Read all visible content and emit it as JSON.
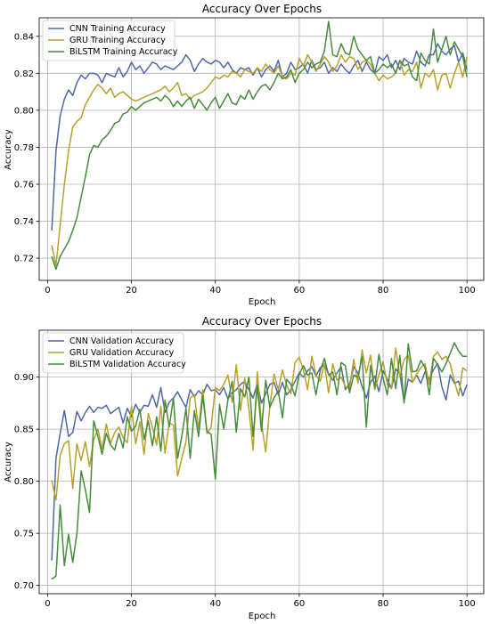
{
  "chart_data": [
    {
      "type": "line",
      "title": "Accuracy Over Epochs",
      "xlabel": "Epoch",
      "ylabel": "Accuracy",
      "xlim": [
        -2,
        104
      ],
      "ylim": [
        0.708,
        0.85
      ],
      "xticks": [
        0,
        20,
        40,
        60,
        80,
        100
      ],
      "yticks": [
        0.72,
        0.74,
        0.76,
        0.78,
        0.8,
        0.82,
        0.84
      ],
      "grid": true,
      "legend_position": "top-left",
      "series": [
        {
          "name": "CNN Training Accuracy",
          "color": "#5167a8",
          "values": [
            0.735,
            0.778,
            0.797,
            0.806,
            0.811,
            0.808,
            0.815,
            0.819,
            0.817,
            0.82,
            0.82,
            0.819,
            0.815,
            0.82,
            0.819,
            0.818,
            0.823,
            0.818,
            0.821,
            0.826,
            0.822,
            0.824,
            0.82,
            0.823,
            0.826,
            0.825,
            0.822,
            0.824,
            0.823,
            0.822,
            0.824,
            0.826,
            0.83,
            0.827,
            0.821,
            0.825,
            0.828,
            0.826,
            0.825,
            0.827,
            0.826,
            0.823,
            0.826,
            0.822,
            0.82,
            0.823,
            0.822,
            0.823,
            0.819,
            0.823,
            0.818,
            0.822,
            0.824,
            0.821,
            0.827,
            0.818,
            0.82,
            0.826,
            0.822,
            0.823,
            0.825,
            0.82,
            0.827,
            0.822,
            0.823,
            0.826,
            0.82,
            0.823,
            0.821,
            0.825,
            0.822,
            0.82,
            0.824,
            0.827,
            0.821,
            0.826,
            0.822,
            0.82,
            0.829,
            0.827,
            0.83,
            0.823,
            0.827,
            0.822,
            0.828,
            0.826,
            0.825,
            0.832,
            0.826,
            0.824,
            0.83,
            0.83,
            0.836,
            0.832,
            0.83,
            0.833,
            0.835,
            0.826,
            0.831,
            0.822
          ]
        },
        {
          "name": "GRU Training Accuracy",
          "color": "#b6a12c",
          "values": [
            0.727,
            0.716,
            0.738,
            0.76,
            0.778,
            0.791,
            0.794,
            0.796,
            0.803,
            0.807,
            0.811,
            0.814,
            0.812,
            0.809,
            0.812,
            0.807,
            0.809,
            0.81,
            0.808,
            0.806,
            0.805,
            0.806,
            0.807,
            0.808,
            0.809,
            0.81,
            0.811,
            0.813,
            0.81,
            0.812,
            0.815,
            0.808,
            0.809,
            0.806,
            0.808,
            0.809,
            0.81,
            0.812,
            0.815,
            0.818,
            0.817,
            0.819,
            0.818,
            0.821,
            0.82,
            0.818,
            0.822,
            0.821,
            0.82,
            0.823,
            0.821,
            0.825,
            0.822,
            0.82,
            0.824,
            0.818,
            0.817,
            0.82,
            0.819,
            0.828,
            0.824,
            0.83,
            0.826,
            0.821,
            0.825,
            0.829,
            0.826,
            0.821,
            0.824,
            0.83,
            0.826,
            0.829,
            0.828,
            0.822,
            0.826,
            0.827,
            0.825,
            0.82,
            0.816,
            0.819,
            0.817,
            0.818,
            0.82,
            0.827,
            0.819,
            0.822,
            0.821,
            0.826,
            0.812,
            0.82,
            0.818,
            0.822,
            0.811,
            0.819,
            0.82,
            0.812,
            0.82,
            0.826,
            0.818,
            0.829
          ]
        },
        {
          "name": "BiLSTM Training Accuracy",
          "color": "#468c3c",
          "values": [
            0.721,
            0.714,
            0.721,
            0.725,
            0.729,
            0.735,
            0.742,
            0.753,
            0.764,
            0.776,
            0.781,
            0.78,
            0.784,
            0.786,
            0.789,
            0.793,
            0.794,
            0.798,
            0.799,
            0.802,
            0.8,
            0.802,
            0.804,
            0.805,
            0.806,
            0.807,
            0.805,
            0.808,
            0.806,
            0.802,
            0.805,
            0.802,
            0.805,
            0.807,
            0.801,
            0.806,
            0.803,
            0.8,
            0.804,
            0.807,
            0.801,
            0.805,
            0.809,
            0.804,
            0.803,
            0.808,
            0.806,
            0.811,
            0.806,
            0.81,
            0.813,
            0.814,
            0.811,
            0.815,
            0.82,
            0.817,
            0.818,
            0.822,
            0.815,
            0.82,
            0.822,
            0.826,
            0.823,
            0.825,
            0.826,
            0.832,
            0.848,
            0.83,
            0.829,
            0.836,
            0.831,
            0.83,
            0.84,
            0.833,
            0.83,
            0.827,
            0.829,
            0.82,
            0.822,
            0.825,
            0.823,
            0.825,
            0.82,
            0.827,
            0.824,
            0.825,
            0.818,
            0.816,
            0.831,
            0.827,
            0.825,
            0.844,
            0.826,
            0.833,
            0.84,
            0.83,
            0.837,
            0.833,
            0.829,
            0.818
          ]
        }
      ]
    },
    {
      "type": "line",
      "title": "Accuracy Over Epochs",
      "xlabel": "Epoch",
      "ylabel": "Accuracy",
      "xlim": [
        -2,
        104
      ],
      "ylim": [
        0.692,
        0.945
      ],
      "xticks": [
        0,
        20,
        40,
        60,
        80,
        100
      ],
      "yticks": [
        0.7,
        0.75,
        0.8,
        0.85,
        0.9
      ],
      "grid": true,
      "legend_position": "top-left",
      "series": [
        {
          "name": "CNN Validation Accuracy",
          "color": "#5167a8",
          "values": [
            0.724,
            0.822,
            0.846,
            0.868,
            0.843,
            0.847,
            0.867,
            0.858,
            0.866,
            0.872,
            0.866,
            0.871,
            0.87,
            0.873,
            0.865,
            0.868,
            0.871,
            0.856,
            0.87,
            0.862,
            0.874,
            0.866,
            0.873,
            0.872,
            0.883,
            0.871,
            0.89,
            0.866,
            0.876,
            0.88,
            0.886,
            0.878,
            0.871,
            0.888,
            0.881,
            0.887,
            0.883,
            0.893,
            0.887,
            0.888,
            0.883,
            0.89,
            0.879,
            0.885,
            0.888,
            0.893,
            0.896,
            0.888,
            0.88,
            0.894,
            0.875,
            0.884,
            0.893,
            0.895,
            0.883,
            0.895,
            0.883,
            0.888,
            0.896,
            0.904,
            0.9,
            0.906,
            0.91,
            0.901,
            0.909,
            0.912,
            0.903,
            0.897,
            0.904,
            0.91,
            0.888,
            0.893,
            0.91,
            0.904,
            0.891,
            0.88,
            0.895,
            0.901,
            0.886,
            0.906,
            0.898,
            0.889,
            0.908,
            0.903,
            0.877,
            0.898,
            0.895,
            0.902,
            0.894,
            0.905,
            0.898,
            0.907,
            0.913,
            0.891,
            0.878,
            0.902,
            0.894,
            0.896,
            0.882,
            0.893
          ]
        },
        {
          "name": "GRU Validation Accuracy",
          "color": "#b6a12c",
          "values": [
            0.801,
            0.782,
            0.825,
            0.836,
            0.839,
            0.793,
            0.836,
            0.82,
            0.838,
            0.814,
            0.84,
            0.85,
            0.831,
            0.855,
            0.836,
            0.847,
            0.852,
            0.842,
            0.837,
            0.872,
            0.836,
            0.857,
            0.826,
            0.865,
            0.852,
            0.835,
            0.872,
            0.827,
            0.856,
            0.854,
            0.805,
            0.822,
            0.838,
            0.88,
            0.883,
            0.85,
            0.888,
            0.846,
            0.852,
            0.89,
            0.887,
            0.893,
            0.902,
            0.876,
            0.912,
            0.868,
            0.899,
            0.87,
            0.83,
            0.905,
            0.856,
            0.828,
            0.872,
            0.903,
            0.888,
            0.907,
            0.892,
            0.884,
            0.914,
            0.919,
            0.907,
            0.888,
            0.92,
            0.902,
            0.896,
            0.913,
            0.885,
            0.913,
            0.897,
            0.9,
            0.891,
            0.889,
            0.917,
            0.894,
            0.926,
            0.904,
            0.921,
            0.888,
            0.902,
            0.915,
            0.893,
            0.889,
            0.928,
            0.9,
            0.917,
            0.921,
            0.895,
            0.903,
            0.909,
            0.913,
            0.893,
            0.92,
            0.924,
            0.917,
            0.92,
            0.913,
            0.896,
            0.882,
            0.909,
            0.906
          ]
        },
        {
          "name": "BiLSTM Validation Accuracy",
          "color": "#468c3c",
          "values": [
            0.706,
            0.709,
            0.777,
            0.719,
            0.749,
            0.722,
            0.75,
            0.81,
            0.792,
            0.77,
            0.858,
            0.843,
            0.826,
            0.846,
            0.835,
            0.83,
            0.846,
            0.832,
            0.862,
            0.848,
            0.853,
            0.869,
            0.84,
            0.858,
            0.834,
            0.862,
            0.829,
            0.878,
            0.852,
            0.88,
            0.822,
            0.843,
            0.87,
            0.822,
            0.868,
            0.843,
            0.882,
            0.848,
            0.845,
            0.802,
            0.874,
            0.85,
            0.878,
            0.896,
            0.847,
            0.889,
            0.881,
            0.9,
            0.843,
            0.892,
            0.848,
            0.897,
            0.871,
            0.88,
            0.887,
            0.861,
            0.898,
            0.893,
            0.882,
            0.903,
            0.911,
            0.902,
            0.904,
            0.883,
            0.906,
            0.918,
            0.902,
            0.905,
            0.883,
            0.914,
            0.911,
            0.885,
            0.902,
            0.9,
            0.92,
            0.852,
            0.911,
            0.89,
            0.922,
            0.899,
            0.883,
            0.918,
            0.889,
            0.921,
            0.875,
            0.932,
            0.905,
            0.906,
            0.916,
            0.909,
            0.883,
            0.918,
            0.912,
            0.905,
            0.913,
            0.923,
            0.933,
            0.925,
            0.92,
            0.92
          ]
        }
      ]
    }
  ]
}
